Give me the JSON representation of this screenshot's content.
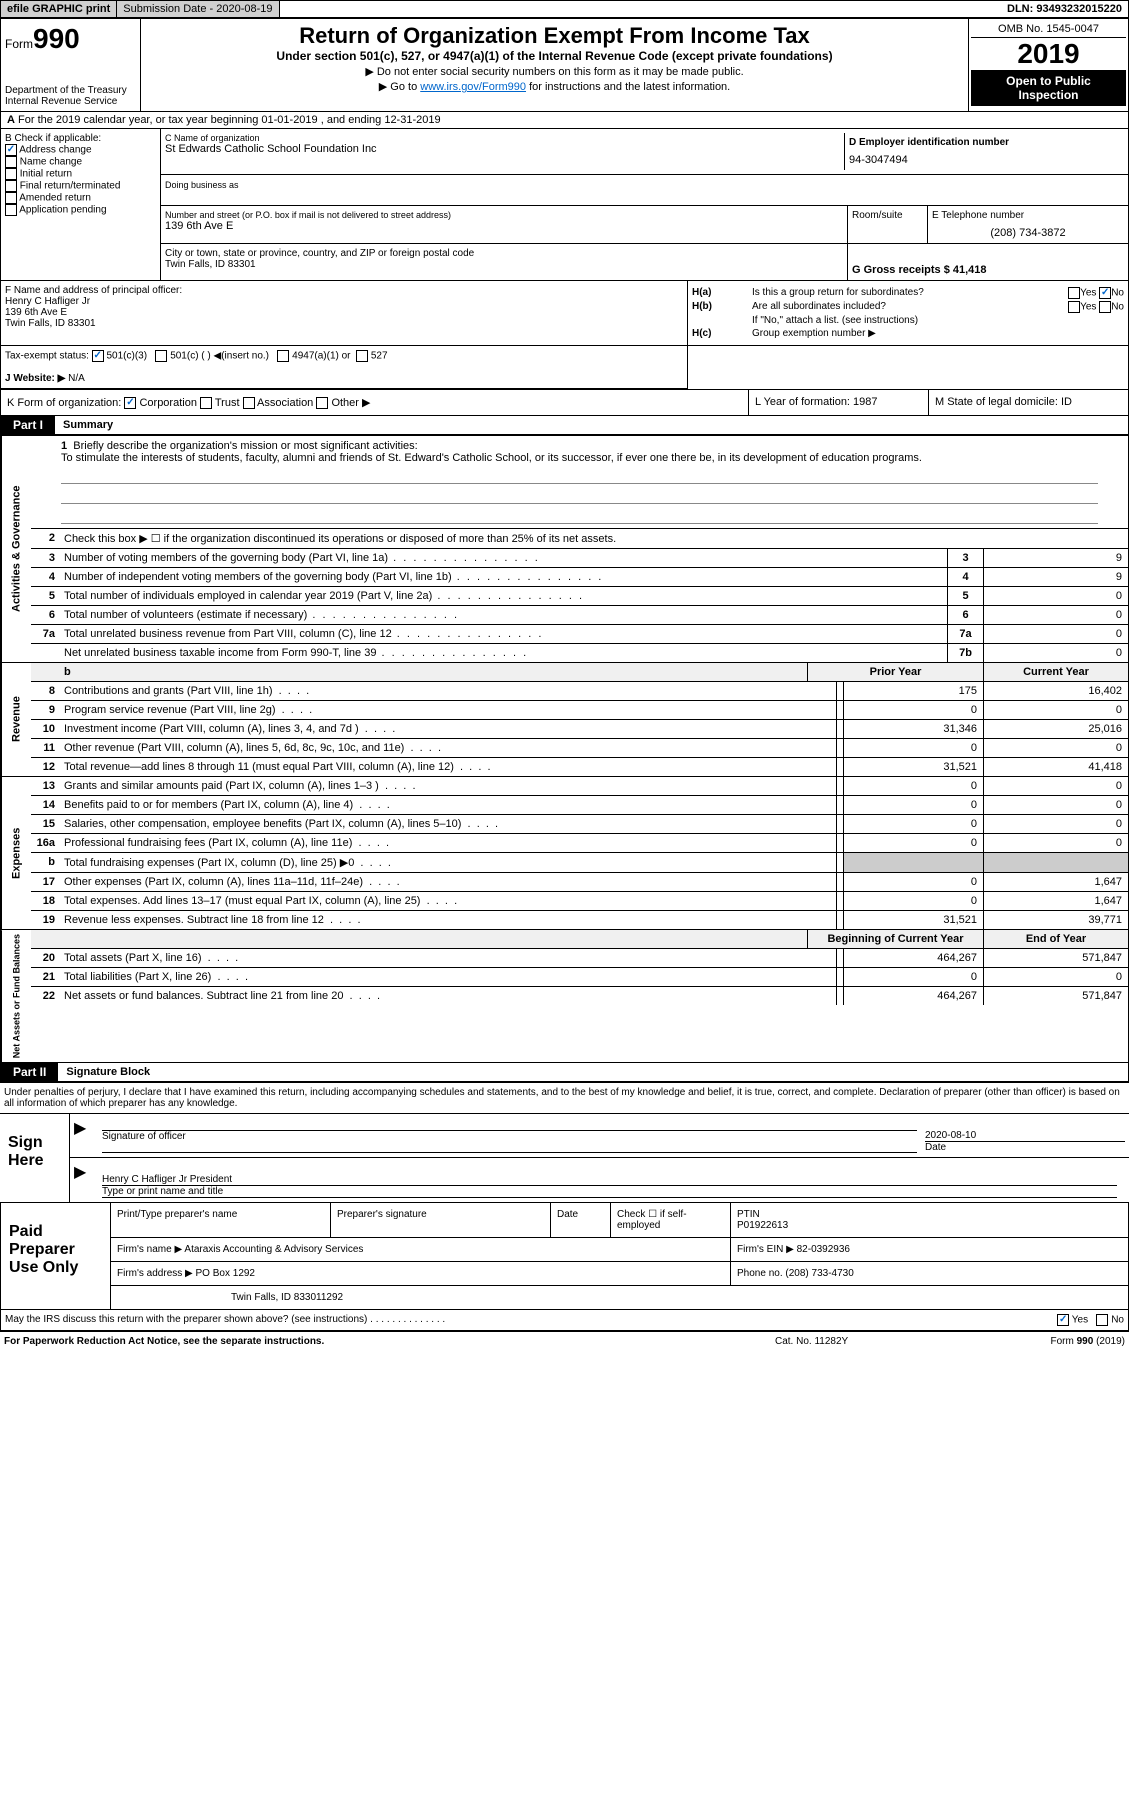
{
  "top": {
    "efile": "efile GRAPHIC print",
    "submission": "Submission Date - 2020-08-19",
    "dln": "DLN: 93493232015220"
  },
  "header": {
    "form_prefix": "Form",
    "form_number": "990",
    "dept": "Department of the Treasury",
    "irs": "Internal Revenue Service",
    "title": "Return of Organization Exempt From Income Tax",
    "subtitle": "Under section 501(c), 527, or 4947(a)(1) of the Internal Revenue Code (except private foundations)",
    "line1": "▶ Do not enter social security numbers on this form as it may be made public.",
    "line2_pre": "▶ Go to ",
    "line2_link": "www.irs.gov/Form990",
    "line2_post": " for instructions and the latest information.",
    "omb": "OMB No. 1545-0047",
    "year": "2019",
    "inspection": "Open to Public Inspection"
  },
  "section_a": "For the 2019 calendar year, or tax year beginning 01-01-2019    , and ending 12-31-2019",
  "section_b": {
    "label": "B Check if applicable:",
    "items": [
      "Address change",
      "Name change",
      "Initial return",
      "Final return/terminated",
      "Amended return",
      "Application pending"
    ],
    "checked": [
      true,
      false,
      false,
      false,
      false,
      false
    ]
  },
  "section_c": {
    "name_label": "C Name of organization",
    "name": "St Edwards Catholic School Foundation Inc",
    "dba_label": "Doing business as",
    "addr_label": "Number and street (or P.O. box if mail is not delivered to street address)",
    "addr": "139 6th Ave E",
    "room_label": "Room/suite",
    "city_label": "City or town, state or province, country, and ZIP or foreign postal code",
    "city": "Twin Falls, ID  83301"
  },
  "section_d": {
    "label": "D Employer identification number",
    "value": "94-3047494"
  },
  "section_e": {
    "label": "E Telephone number",
    "value": "(208) 734-3872"
  },
  "section_g": {
    "label": "G Gross receipts $ 41,418"
  },
  "section_f": {
    "label": "F  Name and address of principal officer:",
    "name": "Henry C Hafliger Jr",
    "addr": "139 6th Ave E",
    "city": "Twin Falls, ID  83301"
  },
  "section_h": {
    "ha_label": "H(a)",
    "ha_text": "Is this a group return for subordinates?",
    "ha_yes": "Yes",
    "ha_no": "No",
    "hb_label": "H(b)",
    "hb_text": "Are all subordinates included?",
    "hb_yes": "Yes",
    "hb_no": "No",
    "hb_note": "If \"No,\" attach a list. (see instructions)",
    "hc_label": "H(c)",
    "hc_text": "Group exemption number ▶"
  },
  "tax_status": {
    "label": "Tax-exempt status:",
    "opt1": "501(c)(3)",
    "opt2": "501(c) (  ) ◀(insert no.)",
    "opt3": "4947(a)(1) or",
    "opt4": "527"
  },
  "website": {
    "label": "J   Website: ▶",
    "value": "N/A"
  },
  "section_k": {
    "label": "K Form of organization:",
    "opts": [
      "Corporation",
      "Trust",
      "Association",
      "Other ▶"
    ],
    "l_label": "L Year of formation: 1987",
    "m_label": "M State of legal domicile: ID"
  },
  "part1": {
    "header": "Part I",
    "title": "Summary",
    "q1": "Briefly describe the organization's mission or most significant activities:",
    "mission": "To stimulate the interests of students, faculty, alumni and friends of St. Edward's Catholic School, or its successor, if ever one there be, in its development of education programs.",
    "q2": "Check this box ▶ ☐  if the organization discontinued its operations or disposed of more than 25% of its net assets.",
    "prior_year": "Prior Year",
    "current_year": "Current Year",
    "beg_year": "Beginning of Current Year",
    "end_year": "End of Year",
    "lines_gov": [
      {
        "n": "3",
        "t": "Number of voting members of the governing body (Part VI, line 1a)",
        "box": "3",
        "v": "9"
      },
      {
        "n": "4",
        "t": "Number of independent voting members of the governing body (Part VI, line 1b)",
        "box": "4",
        "v": "9"
      },
      {
        "n": "5",
        "t": "Total number of individuals employed in calendar year 2019 (Part V, line 2a)",
        "box": "5",
        "v": "0"
      },
      {
        "n": "6",
        "t": "Total number of volunteers (estimate if necessary)",
        "box": "6",
        "v": "0"
      },
      {
        "n": "7a",
        "t": "Total unrelated business revenue from Part VIII, column (C), line 12",
        "box": "7a",
        "v": "0"
      },
      {
        "n": "",
        "t": "Net unrelated business taxable income from Form 990-T, line 39",
        "box": "7b",
        "v": "0"
      }
    ],
    "lines_rev": [
      {
        "n": "8",
        "t": "Contributions and grants (Part VIII, line 1h)",
        "p": "175",
        "c": "16,402"
      },
      {
        "n": "9",
        "t": "Program service revenue (Part VIII, line 2g)",
        "p": "0",
        "c": "0"
      },
      {
        "n": "10",
        "t": "Investment income (Part VIII, column (A), lines 3, 4, and 7d )",
        "p": "31,346",
        "c": "25,016"
      },
      {
        "n": "11",
        "t": "Other revenue (Part VIII, column (A), lines 5, 6d, 8c, 9c, 10c, and 11e)",
        "p": "0",
        "c": "0"
      },
      {
        "n": "12",
        "t": "Total revenue—add lines 8 through 11 (must equal Part VIII, column (A), line 12)",
        "p": "31,521",
        "c": "41,418"
      }
    ],
    "lines_exp": [
      {
        "n": "13",
        "t": "Grants and similar amounts paid (Part IX, column (A), lines 1–3 )",
        "p": "0",
        "c": "0"
      },
      {
        "n": "14",
        "t": "Benefits paid to or for members (Part IX, column (A), line 4)",
        "p": "0",
        "c": "0"
      },
      {
        "n": "15",
        "t": "Salaries, other compensation, employee benefits (Part IX, column (A), lines 5–10)",
        "p": "0",
        "c": "0"
      },
      {
        "n": "16a",
        "t": "Professional fundraising fees (Part IX, column (A), line 11e)",
        "p": "0",
        "c": "0"
      },
      {
        "n": "b",
        "t": "Total fundraising expenses (Part IX, column (D), line 25) ▶0",
        "p": "",
        "c": "",
        "shaded": true
      },
      {
        "n": "17",
        "t": "Other expenses (Part IX, column (A), lines 11a–11d, 11f–24e)",
        "p": "0",
        "c": "1,647"
      },
      {
        "n": "18",
        "t": "Total expenses. Add lines 13–17 (must equal Part IX, column (A), line 25)",
        "p": "0",
        "c": "1,647"
      },
      {
        "n": "19",
        "t": "Revenue less expenses. Subtract line 18 from line 12",
        "p": "31,521",
        "c": "39,771"
      }
    ],
    "lines_net": [
      {
        "n": "20",
        "t": "Total assets (Part X, line 16)",
        "p": "464,267",
        "c": "571,847"
      },
      {
        "n": "21",
        "t": "Total liabilities (Part X, line 26)",
        "p": "0",
        "c": "0"
      },
      {
        "n": "22",
        "t": "Net assets or fund balances. Subtract line 21 from line 20",
        "p": "464,267",
        "c": "571,847"
      }
    ],
    "side_gov": "Activities & Governance",
    "side_rev": "Revenue",
    "side_exp": "Expenses",
    "side_net": "Net Assets or Fund Balances"
  },
  "part2": {
    "header": "Part II",
    "title": "Signature Block",
    "declaration": "Under penalties of perjury, I declare that I have examined this return, including accompanying schedules and statements, and to the best of my knowledge and belief, it is true, correct, and complete. Declaration of preparer (other than officer) is based on all information of which preparer has any knowledge.",
    "sign_here": "Sign Here",
    "sig_officer": "Signature of officer",
    "sig_date_label": "Date",
    "sig_date": "2020-08-10",
    "sig_name": "Henry C Hafliger Jr President",
    "sig_type": "Type or print name and title",
    "paid_prep": "Paid Preparer Use Only",
    "prep_name_label": "Print/Type preparer's name",
    "prep_sig_label": "Preparer's signature",
    "prep_date_label": "Date",
    "prep_check": "Check ☐ if self-employed",
    "ptin_label": "PTIN",
    "ptin": "P01922613",
    "firm_name_label": "Firm's name    ▶",
    "firm_name": "Ataraxis Accounting & Advisory Services",
    "firm_ein_label": "Firm's EIN ▶",
    "firm_ein": "82-0392936",
    "firm_addr_label": "Firm's address ▶",
    "firm_addr": "PO Box 1292",
    "firm_city": "Twin Falls, ID  833011292",
    "firm_phone_label": "Phone no.",
    "firm_phone": "(208) 733-4730",
    "discuss": "May the IRS discuss this return with the preparer shown above? (see instructions)",
    "discuss_yes": "Yes",
    "discuss_no": "No"
  },
  "footer": {
    "paperwork": "For Paperwork Reduction Act Notice, see the separate instructions.",
    "cat": "Cat. No. 11282Y",
    "form": "Form 990 (2019)"
  }
}
